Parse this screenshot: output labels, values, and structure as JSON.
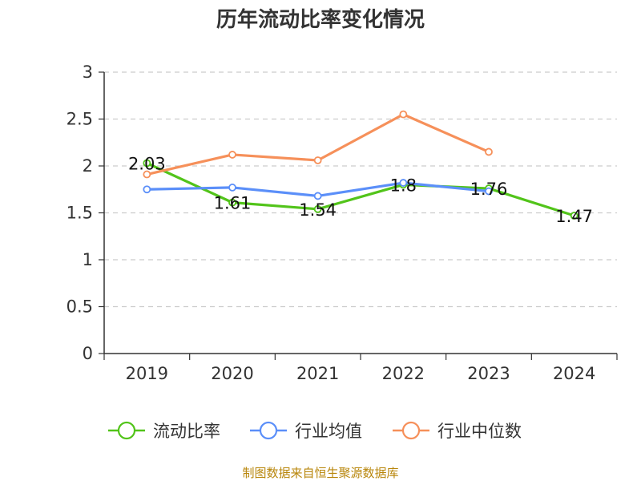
{
  "chart_data": {
    "type": "line",
    "title": "历年流动比率变化情况",
    "categories": [
      "2019",
      "2020",
      "2021",
      "2022",
      "2023",
      "2024"
    ],
    "ylim": [
      0,
      3
    ],
    "yticks": [
      "0",
      "0.5",
      "1",
      "1.5",
      "2",
      "2.5",
      "3"
    ],
    "grid": true,
    "legend_position": "bottom",
    "series": [
      {
        "name": "流动比率",
        "color": "#52c41a",
        "values": [
          2.03,
          1.61,
          1.54,
          1.8,
          1.76,
          1.47
        ],
        "labels": [
          "2.03",
          "1.61",
          "1.54",
          "1.8",
          "1.76",
          "1.47"
        ]
      },
      {
        "name": "行业均值",
        "color": "#5b8ff9",
        "values": [
          1.75,
          1.77,
          1.68,
          1.82,
          1.73,
          null
        ]
      },
      {
        "name": "行业中位数",
        "color": "#f6905a",
        "values": [
          1.91,
          2.12,
          2.06,
          2.55,
          2.15,
          null
        ]
      }
    ],
    "source": "制图数据来自恒生聚源数据库"
  }
}
